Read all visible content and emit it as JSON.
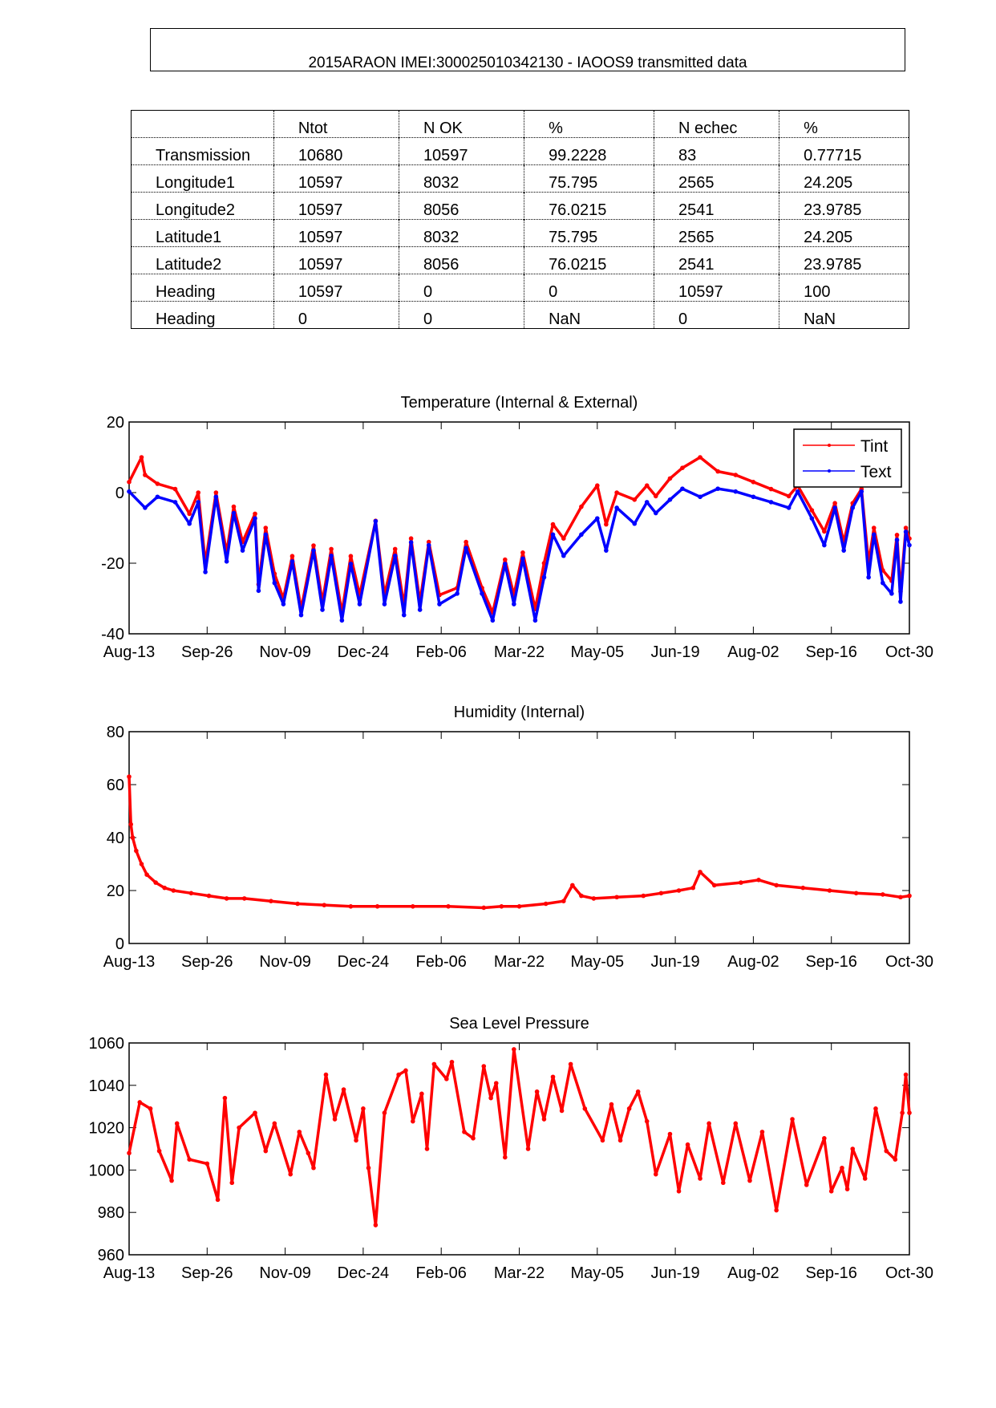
{
  "header": {
    "title": "2015ARAON  IMEI:300025010342130  - IAOOS9 transmitted data"
  },
  "table": {
    "columns": [
      "",
      "Ntot",
      "N OK",
      "%",
      "N echec",
      "%"
    ],
    "rows": [
      [
        "Transmission",
        "10680",
        "10597",
        "99.2228",
        "83",
        "0.77715"
      ],
      [
        "Longitude1",
        "10597",
        "8032",
        "75.795",
        "2565",
        "24.205"
      ],
      [
        "Longitude2",
        "10597",
        "8056",
        "76.0215",
        "2541",
        "23.9785"
      ],
      [
        "Latitude1",
        "10597",
        "8032",
        "75.795",
        "2565",
        "24.205"
      ],
      [
        "Latitude2",
        "10597",
        "8056",
        "76.0215",
        "2541",
        "23.9785"
      ],
      [
        "Heading",
        "10597",
        "0",
        "0",
        "10597",
        "100"
      ],
      [
        "Heading",
        "0",
        "0",
        "NaN",
        "0",
        "NaN"
      ]
    ]
  },
  "chart_data": [
    {
      "type": "line",
      "title": "Temperature (Internal & External)",
      "xlabel": "",
      "ylabel": "",
      "xlim": [
        0,
        440
      ],
      "ylim": [
        -40,
        20
      ],
      "xticks": [
        0,
        44,
        88,
        132,
        176,
        220,
        264,
        308,
        352,
        396,
        440
      ],
      "xtick_labels": [
        "Aug-13",
        "Sep-26",
        "Nov-09",
        "Dec-24",
        "Feb-06",
        "Mar-22",
        "May-05",
        "Jun-19",
        "Aug-02",
        "Sep-16",
        "Oct-30"
      ],
      "yticks": [
        -40,
        -20,
        0,
        20
      ],
      "ytick_labels": [
        "-40",
        "-20",
        "0",
        "20"
      ],
      "legend": {
        "position": "top-right",
        "entries": [
          "Tint",
          "Text"
        ]
      },
      "x_unit": "days since Aug-13",
      "series": [
        {
          "name": "Tint",
          "color": "#ff0000",
          "x": [
            0,
            7,
            9,
            16,
            26,
            34,
            39,
            43,
            49,
            55,
            59,
            64,
            71,
            73,
            77,
            82,
            87,
            92,
            97,
            104,
            109,
            114,
            120,
            125,
            130,
            139,
            144,
            150,
            155,
            159,
            164,
            169,
            175,
            185,
            190,
            199,
            205,
            212,
            217,
            222,
            229,
            234,
            239,
            245,
            255,
            264,
            269,
            275,
            285,
            292,
            297,
            305,
            312,
            322,
            332,
            342,
            352,
            362,
            372,
            377,
            385,
            392,
            398,
            403,
            408,
            413,
            417,
            420,
            425,
            430,
            433,
            435,
            438,
            440
          ],
          "y": [
            3,
            10,
            5,
            2.5,
            1,
            -6,
            0,
            -20,
            0,
            -17,
            -4,
            -14,
            -6,
            -26,
            -10,
            -23,
            -30,
            -18,
            -33,
            -15,
            -31,
            -16,
            -34,
            -18,
            -29,
            -8,
            -29,
            -16,
            -32,
            -13,
            -31,
            -14,
            -29,
            -27,
            -14,
            -27,
            -34,
            -19,
            -29,
            -17,
            -33,
            -20,
            -9,
            -13,
            -4,
            2,
            -9,
            0,
            -2,
            2,
            -1,
            4,
            7,
            10,
            6,
            5,
            3,
            1,
            -1,
            2,
            -5,
            -11,
            -3,
            -14,
            -3,
            1,
            -20,
            -10,
            -22,
            -25,
            -12,
            -28,
            -10,
            -13
          ]
        },
        {
          "name": "Text",
          "color": "#0000ff",
          "x": [
            0,
            9,
            16,
            26,
            34,
            39,
            43,
            49,
            55,
            59,
            64,
            71,
            73,
            77,
            82,
            87,
            92,
            97,
            104,
            109,
            114,
            120,
            125,
            130,
            139,
            144,
            150,
            155,
            159,
            164,
            169,
            175,
            185,
            190,
            199,
            205,
            212,
            217,
            222,
            229,
            234,
            239,
            245,
            255,
            264,
            269,
            275,
            285,
            292,
            297,
            305,
            312,
            322,
            332,
            342,
            352,
            362,
            372,
            377,
            385,
            392,
            398,
            403,
            408,
            413,
            417,
            420,
            425,
            430,
            433,
            435,
            438,
            440
          ],
          "y": [
            0.3,
            -4.3,
            -1.2,
            -2.7,
            -8.8,
            -2.7,
            -22.5,
            -1.2,
            -19.5,
            -5.8,
            -16.4,
            -7.3,
            -27.8,
            -11.9,
            -25.6,
            -31.6,
            -19.5,
            -34.7,
            -16.4,
            -33.2,
            -17.9,
            -36.2,
            -20.2,
            -31.6,
            -8.1,
            -31.6,
            -17.9,
            -34.7,
            -14.1,
            -33.2,
            -14.9,
            -31.6,
            -28.6,
            -15.7,
            -28.6,
            -36.2,
            -20.2,
            -31.6,
            -18.7,
            -36.2,
            -24,
            -11.9,
            -17.9,
            -11.9,
            -7.3,
            -16.4,
            -4.3,
            -8.8,
            -2.7,
            -5.8,
            -2,
            1.1,
            -1.2,
            1.1,
            0.3,
            -1.2,
            -2.7,
            -4.3,
            0.3,
            -7.3,
            -14.9,
            -4.3,
            -16.4,
            -4.3,
            0.3,
            -24,
            -11.9,
            -25.6,
            -28.6,
            -13.4,
            -30.9,
            -11.1,
            -14.9
          ]
        }
      ]
    },
    {
      "type": "line",
      "title": "Humidity (Internal)",
      "xlabel": "",
      "ylabel": "",
      "xlim": [
        0,
        440
      ],
      "ylim": [
        0,
        80
      ],
      "xticks": [
        0,
        44,
        88,
        132,
        176,
        220,
        264,
        308,
        352,
        396,
        440
      ],
      "xtick_labels": [
        "Aug-13",
        "Sep-26",
        "Nov-09",
        "Dec-24",
        "Feb-06",
        "Mar-22",
        "May-05",
        "Jun-19",
        "Aug-02",
        "Sep-16",
        "Oct-30"
      ],
      "yticks": [
        0,
        20,
        40,
        60,
        80
      ],
      "ytick_labels": [
        "0",
        "20",
        "40",
        "60",
        "80"
      ],
      "x_unit": "days since Aug-13",
      "series": [
        {
          "name": "Humidity",
          "color": "#ff0000",
          "x": [
            0,
            1,
            2,
            4,
            7,
            10,
            15,
            20,
            25,
            35,
            45,
            55,
            65,
            80,
            95,
            110,
            125,
            140,
            160,
            180,
            200,
            210,
            220,
            235,
            245,
            250,
            255,
            262,
            275,
            290,
            300,
            310,
            318,
            322,
            330,
            345,
            355,
            365,
            380,
            395,
            410,
            425,
            435,
            440
          ],
          "y": [
            63,
            45,
            40,
            35,
            30,
            26,
            23,
            21,
            20,
            19,
            18,
            17,
            17,
            16,
            15,
            14.5,
            14,
            14,
            14,
            14,
            13.5,
            14,
            14,
            15,
            16,
            22,
            18,
            17,
            17.5,
            18,
            19,
            20,
            21,
            27,
            22,
            23,
            24,
            22,
            21,
            20,
            19,
            18.5,
            17.5,
            18
          ]
        }
      ]
    },
    {
      "type": "line",
      "title": "Sea Level Pressure",
      "xlabel": "",
      "ylabel": "",
      "xlim": [
        0,
        440
      ],
      "ylim": [
        960,
        1060
      ],
      "xticks": [
        0,
        44,
        88,
        132,
        176,
        220,
        264,
        308,
        352,
        396,
        440
      ],
      "xtick_labels": [
        "Aug-13",
        "Sep-26",
        "Nov-09",
        "Dec-24",
        "Feb-06",
        "Mar-22",
        "May-05",
        "Jun-19",
        "Aug-02",
        "Sep-16",
        "Oct-30"
      ],
      "yticks": [
        960,
        980,
        1000,
        1020,
        1040,
        1060
      ],
      "ytick_labels": [
        "960",
        "980",
        "1000",
        "1020",
        "1040",
        "1060"
      ],
      "x_unit": "days since Aug-13",
      "series": [
        {
          "name": "Pressure",
          "color": "#ff0000",
          "x": [
            0,
            6,
            12,
            17,
            24,
            27,
            34,
            44,
            50,
            54,
            58,
            62,
            71,
            77,
            82,
            91,
            96,
            101,
            104,
            111,
            116,
            121,
            128,
            132,
            135,
            139,
            144,
            152,
            156,
            160,
            165,
            168,
            172,
            179,
            182,
            189,
            194,
            200,
            204,
            207,
            212,
            217,
            225,
            230,
            234,
            239,
            244,
            249,
            257,
            267,
            272,
            277,
            282,
            287,
            292,
            297,
            305,
            310,
            315,
            322,
            327,
            335,
            342,
            350,
            357,
            365,
            374,
            382,
            392,
            396,
            402,
            405,
            408,
            415,
            421,
            427,
            432,
            436,
            438,
            440
          ],
          "y": [
            1008,
            1032,
            1029,
            1009,
            995,
            1022,
            1005,
            1003,
            986,
            1034,
            994,
            1020,
            1027,
            1009,
            1022,
            998,
            1018,
            1008,
            1001,
            1045,
            1024,
            1038,
            1014,
            1029,
            1001,
            974,
            1027,
            1045,
            1047,
            1023,
            1036,
            1010,
            1050,
            1043,
            1051,
            1018,
            1015,
            1049,
            1034,
            1041,
            1006,
            1057,
            1010,
            1037,
            1024,
            1044,
            1028,
            1050,
            1029,
            1014,
            1031,
            1014,
            1029,
            1037,
            1023,
            998,
            1017,
            990,
            1012,
            996,
            1022,
            994,
            1022,
            995,
            1018,
            981,
            1024,
            993,
            1015,
            990,
            1001,
            991,
            1010,
            996,
            1029,
            1009,
            1005,
            1027,
            1045,
            1027
          ]
        }
      ]
    }
  ]
}
